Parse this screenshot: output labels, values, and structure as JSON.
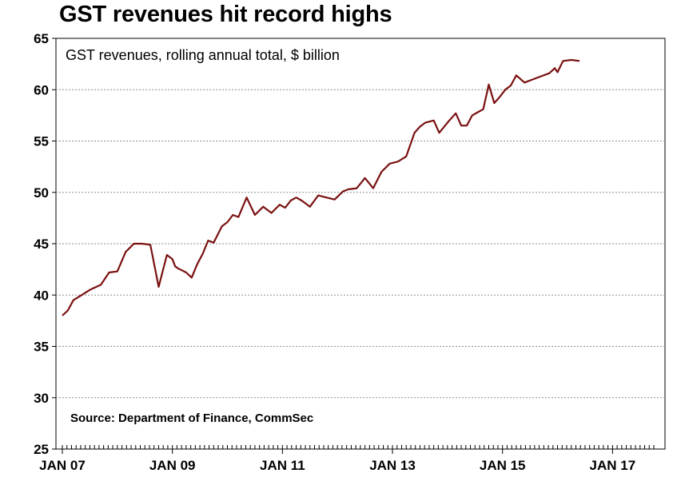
{
  "chart_data": {
    "type": "line",
    "title": "GST revenues hit record highs",
    "subtitle": "GST revenues, rolling annual total, $ billion",
    "source": "Source: Department of Finance, CommSec",
    "ylim": [
      25,
      65
    ],
    "yticks": [
      25,
      30,
      35,
      40,
      45,
      50,
      55,
      60,
      65
    ],
    "xlim": [
      2007.0,
      2017.75
    ],
    "xticks": [
      {
        "label": "JAN 07",
        "value": 2007
      },
      {
        "label": "JAN 09",
        "value": 2009
      },
      {
        "label": "JAN 11",
        "value": 2011
      },
      {
        "label": "JAN 13",
        "value": 2013
      },
      {
        "label": "JAN 15",
        "value": 2015
      },
      {
        "label": "JAN 17",
        "value": 2017
      }
    ],
    "grid": true,
    "series": [
      {
        "name": "GST revenues, rolling annual total",
        "color": "#7a1010",
        "x": [
          2007.0,
          2007.1,
          2007.2,
          2007.35,
          2007.5,
          2007.7,
          2007.85,
          2008.0,
          2008.15,
          2008.3,
          2008.45,
          2008.6,
          2008.75,
          2008.9,
          2009.0,
          2009.05,
          2009.1,
          2009.25,
          2009.35,
          2009.45,
          2009.55,
          2009.65,
          2009.75,
          2009.9,
          2010.0,
          2010.1,
          2010.2,
          2010.35,
          2010.5,
          2010.65,
          2010.8,
          2010.95,
          2011.05,
          2011.15,
          2011.25,
          2011.35,
          2011.5,
          2011.65,
          2011.8,
          2011.95,
          2012.1,
          2012.2,
          2012.35,
          2012.5,
          2012.65,
          2012.8,
          2012.95,
          2013.1,
          2013.25,
          2013.4,
          2013.5,
          2013.6,
          2013.75,
          2013.85,
          2014.0,
          2014.15,
          2014.25,
          2014.35,
          2014.45,
          2014.55,
          2014.65,
          2014.75,
          2014.85,
          2014.95,
          2015.05,
          2015.15,
          2015.25,
          2015.4,
          2015.55,
          2015.7,
          2015.85,
          2015.95,
          2016.0,
          2016.1,
          2016.25,
          2016.4,
          2016.5,
          2016.6,
          2016.75,
          2016.9,
          2017.0,
          2017.1,
          2017.2,
          2017.3,
          2017.45,
          2017.6
        ],
        "y": [
          38.0,
          38.5,
          39.5,
          40.0,
          40.5,
          41.0,
          42.2,
          42.3,
          44.2,
          45.0,
          45.0,
          44.9,
          40.8,
          43.9,
          43.5,
          42.8,
          42.6,
          42.2,
          41.7,
          43.0,
          44.0,
          45.3,
          45.1,
          46.7,
          47.1,
          47.8,
          47.6,
          49.5,
          47.8,
          48.6,
          48.0,
          48.8,
          48.5,
          49.2,
          49.5,
          49.2,
          48.6,
          49.7,
          49.5,
          49.3,
          50.1,
          50.3,
          50.4,
          51.4,
          50.4,
          52.0,
          52.8,
          53.0,
          53.5,
          55.8,
          56.4,
          56.8,
          57.0,
          55.8,
          56.8,
          57.7,
          56.5,
          56.5,
          57.5,
          57.8,
          58.1,
          60.5,
          58.7,
          59.3,
          60.0,
          60.4,
          61.4,
          60.7,
          61.0,
          61.3,
          61.6,
          62.1,
          61.7,
          62.8,
          62.9,
          62.8,
          null,
          null,
          null,
          null,
          null,
          null,
          null,
          null,
          null,
          null
        ]
      }
    ]
  }
}
